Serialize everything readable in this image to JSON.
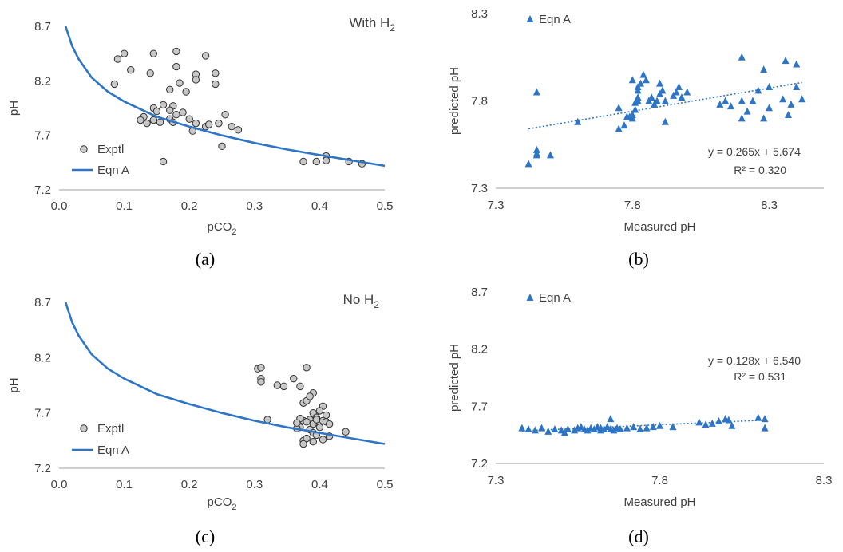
{
  "chart_data": [
    {
      "panel": "(a)",
      "type": "scatter",
      "title": "With H",
      "title_sub": "2",
      "xlabel": "pCO",
      "xlabel_sub": "2",
      "ylabel": "pH",
      "xlim": [
        0.0,
        0.5
      ],
      "ylim": [
        7.2,
        8.7
      ],
      "xticks": [
        "0.0",
        "0.1",
        "0.2",
        "0.3",
        "0.4",
        "0.5"
      ],
      "yticks": [
        "7.2",
        "7.7",
        "8.2",
        "8.7"
      ],
      "grid": false,
      "legend": {
        "position": "left",
        "entries": [
          "Exptl",
          "Eqn A"
        ]
      },
      "series": [
        {
          "name": "Exptl",
          "kind": "scatter",
          "points": [
            [
              0.1,
              8.45
            ],
            [
              0.145,
              8.45
            ],
            [
              0.18,
              8.47
            ],
            [
              0.09,
              8.4
            ],
            [
              0.225,
              8.43
            ],
            [
              0.11,
              8.3
            ],
            [
              0.14,
              8.27
            ],
            [
              0.18,
              8.33
            ],
            [
              0.21,
              8.26
            ],
            [
              0.24,
              8.27
            ],
            [
              0.085,
              8.17
            ],
            [
              0.185,
              8.18
            ],
            [
              0.21,
              8.21
            ],
            [
              0.24,
              8.17
            ],
            [
              0.17,
              8.12
            ],
            [
              0.195,
              8.1
            ],
            [
              0.145,
              7.95
            ],
            [
              0.16,
              7.98
            ],
            [
              0.175,
              7.97
            ],
            [
              0.15,
              7.92
            ],
            [
              0.17,
              7.93
            ],
            [
              0.18,
              7.89
            ],
            [
              0.19,
              7.91
            ],
            [
              0.13,
              7.87
            ],
            [
              0.145,
              7.84
            ],
            [
              0.155,
              7.82
            ],
            [
              0.125,
              7.84
            ],
            [
              0.135,
              7.81
            ],
            [
              0.17,
              7.85
            ],
            [
              0.175,
              7.82
            ],
            [
              0.2,
              7.85
            ],
            [
              0.21,
              7.81
            ],
            [
              0.225,
              7.78
            ],
            [
              0.23,
              7.8
            ],
            [
              0.245,
              7.81
            ],
            [
              0.255,
              7.89
            ],
            [
              0.265,
              7.78
            ],
            [
              0.275,
              7.75
            ],
            [
              0.205,
              7.74
            ],
            [
              0.16,
              7.46
            ],
            [
              0.25,
              7.6
            ],
            [
              0.375,
              7.46
            ],
            [
              0.395,
              7.46
            ],
            [
              0.41,
              7.51
            ],
            [
              0.41,
              7.47
            ],
            [
              0.445,
              7.46
            ],
            [
              0.465,
              7.44
            ]
          ]
        },
        {
          "name": "Eqn A",
          "kind": "line",
          "points": [
            [
              0.01,
              8.7
            ],
            [
              0.02,
              8.52
            ],
            [
              0.03,
              8.4
            ],
            [
              0.05,
              8.23
            ],
            [
              0.075,
              8.1
            ],
            [
              0.1,
              8.01
            ],
            [
              0.15,
              7.87
            ],
            [
              0.2,
              7.78
            ],
            [
              0.25,
              7.7
            ],
            [
              0.3,
              7.63
            ],
            [
              0.35,
              7.57
            ],
            [
              0.4,
              7.52
            ],
            [
              0.45,
              7.47
            ],
            [
              0.5,
              7.42
            ]
          ]
        }
      ]
    },
    {
      "panel": "(b)",
      "type": "scatter",
      "xlabel": "Measured pH",
      "ylabel": "predicted pH",
      "xlim": [
        7.3,
        8.5
      ],
      "ylim": [
        7.3,
        8.3
      ],
      "xticks": [
        "7.3",
        "7.8",
        "8.3"
      ],
      "yticks": [
        "7.3",
        "7.8",
        "8.3"
      ],
      "grid": false,
      "legend": {
        "position": "top-left",
        "entries": [
          "Eqn A"
        ]
      },
      "trendline": {
        "slope": 0.265,
        "intercept": 5.674,
        "x_range": [
          7.42,
          8.42
        ]
      },
      "equation": "y = 0.265x + 5.674",
      "r2": "R² = 0.320",
      "series": [
        {
          "name": "Eqn A",
          "kind": "marker",
          "points": [
            [
              7.42,
              7.44
            ],
            [
              7.45,
              7.52
            ],
            [
              7.45,
              7.5
            ],
            [
              7.45,
              7.49
            ],
            [
              7.5,
              7.49
            ],
            [
              7.45,
              7.85
            ],
            [
              7.6,
              7.68
            ],
            [
              7.75,
              7.64
            ],
            [
              7.77,
              7.66
            ],
            [
              7.75,
              7.76
            ],
            [
              7.78,
              7.71
            ],
            [
              7.79,
              7.71
            ],
            [
              7.8,
              7.92
            ],
            [
              7.8,
              7.72
            ],
            [
              7.8,
              7.7
            ],
            [
              7.81,
              7.75
            ],
            [
              7.81,
              7.79
            ],
            [
              7.82,
              7.8
            ],
            [
              7.82,
              7.82
            ],
            [
              7.82,
              7.86
            ],
            [
              7.82,
              7.88
            ],
            [
              7.83,
              7.9
            ],
            [
              7.84,
              7.95
            ],
            [
              7.85,
              7.92
            ],
            [
              7.86,
              7.8
            ],
            [
              7.87,
              7.82
            ],
            [
              7.88,
              7.78
            ],
            [
              7.89,
              7.8
            ],
            [
              7.9,
              7.84
            ],
            [
              7.9,
              7.9
            ],
            [
              7.91,
              7.86
            ],
            [
              7.92,
              7.8
            ],
            [
              7.92,
              7.68
            ],
            [
              7.95,
              7.83
            ],
            [
              7.96,
              7.85
            ],
            [
              7.97,
              7.88
            ],
            [
              7.98,
              7.82
            ],
            [
              8.0,
              7.85
            ],
            [
              8.12,
              7.78
            ],
            [
              8.14,
              7.8
            ],
            [
              8.16,
              7.77
            ],
            [
              8.2,
              7.8
            ],
            [
              8.2,
              7.7
            ],
            [
              8.22,
              7.74
            ],
            [
              8.24,
              7.8
            ],
            [
              8.26,
              7.86
            ],
            [
              8.28,
              7.7
            ],
            [
              8.3,
              7.88
            ],
            [
              8.3,
              7.76
            ],
            [
              8.35,
              7.81
            ],
            [
              8.38,
              7.78
            ],
            [
              8.2,
              8.05
            ],
            [
              8.28,
              7.98
            ],
            [
              8.36,
              8.03
            ],
            [
              8.4,
              7.88
            ],
            [
              8.42,
              7.81
            ],
            [
              8.4,
              8.01
            ],
            [
              8.37,
              7.72
            ]
          ]
        }
      ]
    },
    {
      "panel": "(c)",
      "type": "scatter",
      "title": "No H",
      "title_sub": "2",
      "xlabel": "pCO",
      "xlabel_sub": "2",
      "ylabel": "pH",
      "xlim": [
        0.0,
        0.5
      ],
      "ylim": [
        7.2,
        8.7
      ],
      "xticks": [
        "0.0",
        "0.1",
        "0.2",
        "0.3",
        "0.4",
        "0.5"
      ],
      "yticks": [
        "7.2",
        "7.7",
        "8.2",
        "8.7"
      ],
      "grid": false,
      "legend": {
        "position": "left",
        "entries": [
          "Exptl",
          "Eqn A"
        ]
      },
      "series": [
        {
          "name": "Exptl",
          "kind": "scatter",
          "points": [
            [
              0.305,
              8.1
            ],
            [
              0.31,
              8.11
            ],
            [
              0.38,
              8.11
            ],
            [
              0.31,
              8.01
            ],
            [
              0.31,
              7.98
            ],
            [
              0.335,
              7.95
            ],
            [
              0.345,
              7.94
            ],
            [
              0.36,
              8.01
            ],
            [
              0.37,
              7.94
            ],
            [
              0.39,
              7.88
            ],
            [
              0.405,
              7.76
            ],
            [
              0.375,
              7.79
            ],
            [
              0.38,
              7.81
            ],
            [
              0.385,
              7.85
            ],
            [
              0.39,
              7.7
            ],
            [
              0.4,
              7.72
            ],
            [
              0.41,
              7.68
            ],
            [
              0.395,
              7.66
            ],
            [
              0.385,
              7.64
            ],
            [
              0.375,
              7.63
            ],
            [
              0.37,
              7.65
            ],
            [
              0.38,
              7.62
            ],
            [
              0.39,
              7.6
            ],
            [
              0.4,
              7.62
            ],
            [
              0.405,
              7.63
            ],
            [
              0.41,
              7.62
            ],
            [
              0.415,
              7.6
            ],
            [
              0.385,
              7.55
            ],
            [
              0.39,
              7.52
            ],
            [
              0.395,
              7.5
            ],
            [
              0.37,
              7.57
            ],
            [
              0.365,
              7.56
            ],
            [
              0.375,
              7.45
            ],
            [
              0.38,
              7.47
            ],
            [
              0.39,
              7.44
            ],
            [
              0.375,
              7.42
            ],
            [
              0.405,
              7.46
            ],
            [
              0.415,
              7.49
            ],
            [
              0.44,
              7.53
            ],
            [
              0.32,
              7.64
            ],
            [
              0.365,
              7.61
            ],
            [
              0.4,
              7.57
            ],
            [
              0.395,
              7.64
            ]
          ]
        },
        {
          "name": "Eqn A",
          "kind": "line",
          "points": [
            [
              0.01,
              8.7
            ],
            [
              0.02,
              8.52
            ],
            [
              0.03,
              8.4
            ],
            [
              0.05,
              8.23
            ],
            [
              0.075,
              8.1
            ],
            [
              0.1,
              8.01
            ],
            [
              0.15,
              7.87
            ],
            [
              0.2,
              7.78
            ],
            [
              0.25,
              7.7
            ],
            [
              0.3,
              7.63
            ],
            [
              0.35,
              7.57
            ],
            [
              0.4,
              7.52
            ],
            [
              0.45,
              7.47
            ],
            [
              0.5,
              7.42
            ]
          ]
        }
      ]
    },
    {
      "panel": "(d)",
      "type": "scatter",
      "xlabel": "Measured pH",
      "ylabel": "predicted pH",
      "xlim": [
        7.3,
        8.3
      ],
      "ylim": [
        7.2,
        8.7
      ],
      "xticks": [
        "7.3",
        "7.8",
        "8.3"
      ],
      "yticks": [
        "7.2",
        "7.7",
        "8.2",
        "8.7"
      ],
      "grid": false,
      "legend": {
        "position": "top-left",
        "entries": [
          "Eqn A"
        ]
      },
      "trendline": {
        "slope": 0.128,
        "intercept": 6.54,
        "x_range": [
          7.38,
          8.12
        ]
      },
      "equation": "y = 0.128x + 6.540",
      "r2": "R² = 0.531",
      "series": [
        {
          "name": "Eqn A",
          "kind": "marker",
          "points": [
            [
              7.38,
              7.51
            ],
            [
              7.4,
              7.5
            ],
            [
              7.42,
              7.49
            ],
            [
              7.44,
              7.51
            ],
            [
              7.46,
              7.48
            ],
            [
              7.48,
              7.5
            ],
            [
              7.5,
              7.49
            ],
            [
              7.51,
              7.47
            ],
            [
              7.52,
              7.5
            ],
            [
              7.54,
              7.49
            ],
            [
              7.55,
              7.51
            ],
            [
              7.56,
              7.52
            ],
            [
              7.57,
              7.5
            ],
            [
              7.58,
              7.49
            ],
            [
              7.59,
              7.51
            ],
            [
              7.6,
              7.5
            ],
            [
              7.61,
              7.52
            ],
            [
              7.62,
              7.51
            ],
            [
              7.62,
              7.49
            ],
            [
              7.63,
              7.5
            ],
            [
              7.64,
              7.52
            ],
            [
              7.65,
              7.5
            ],
            [
              7.66,
              7.49
            ],
            [
              7.67,
              7.51
            ],
            [
              7.68,
              7.5
            ],
            [
              7.7,
              7.51
            ],
            [
              7.72,
              7.52
            ],
            [
              7.74,
              7.5
            ],
            [
              7.76,
              7.51
            ],
            [
              7.78,
              7.52
            ],
            [
              7.65,
              7.59
            ],
            [
              7.8,
              7.53
            ],
            [
              7.84,
              7.52
            ],
            [
              7.92,
              7.56
            ],
            [
              7.94,
              7.54
            ],
            [
              7.96,
              7.55
            ],
            [
              7.98,
              7.57
            ],
            [
              8.0,
              7.59
            ],
            [
              8.01,
              7.58
            ],
            [
              8.02,
              7.53
            ],
            [
              8.1,
              7.6
            ],
            [
              8.12,
              7.59
            ],
            [
              8.12,
              7.51
            ]
          ]
        }
      ]
    }
  ],
  "captions": [
    "(a)",
    "(b)",
    "(c)",
    "(d)"
  ],
  "colors": {
    "blue": "#2e75c6",
    "marker": "#2e75c6",
    "dot_fill": "#c8c8c8",
    "dot_stroke": "#303030",
    "axis": "#bfbfbf",
    "text": "#404040"
  }
}
